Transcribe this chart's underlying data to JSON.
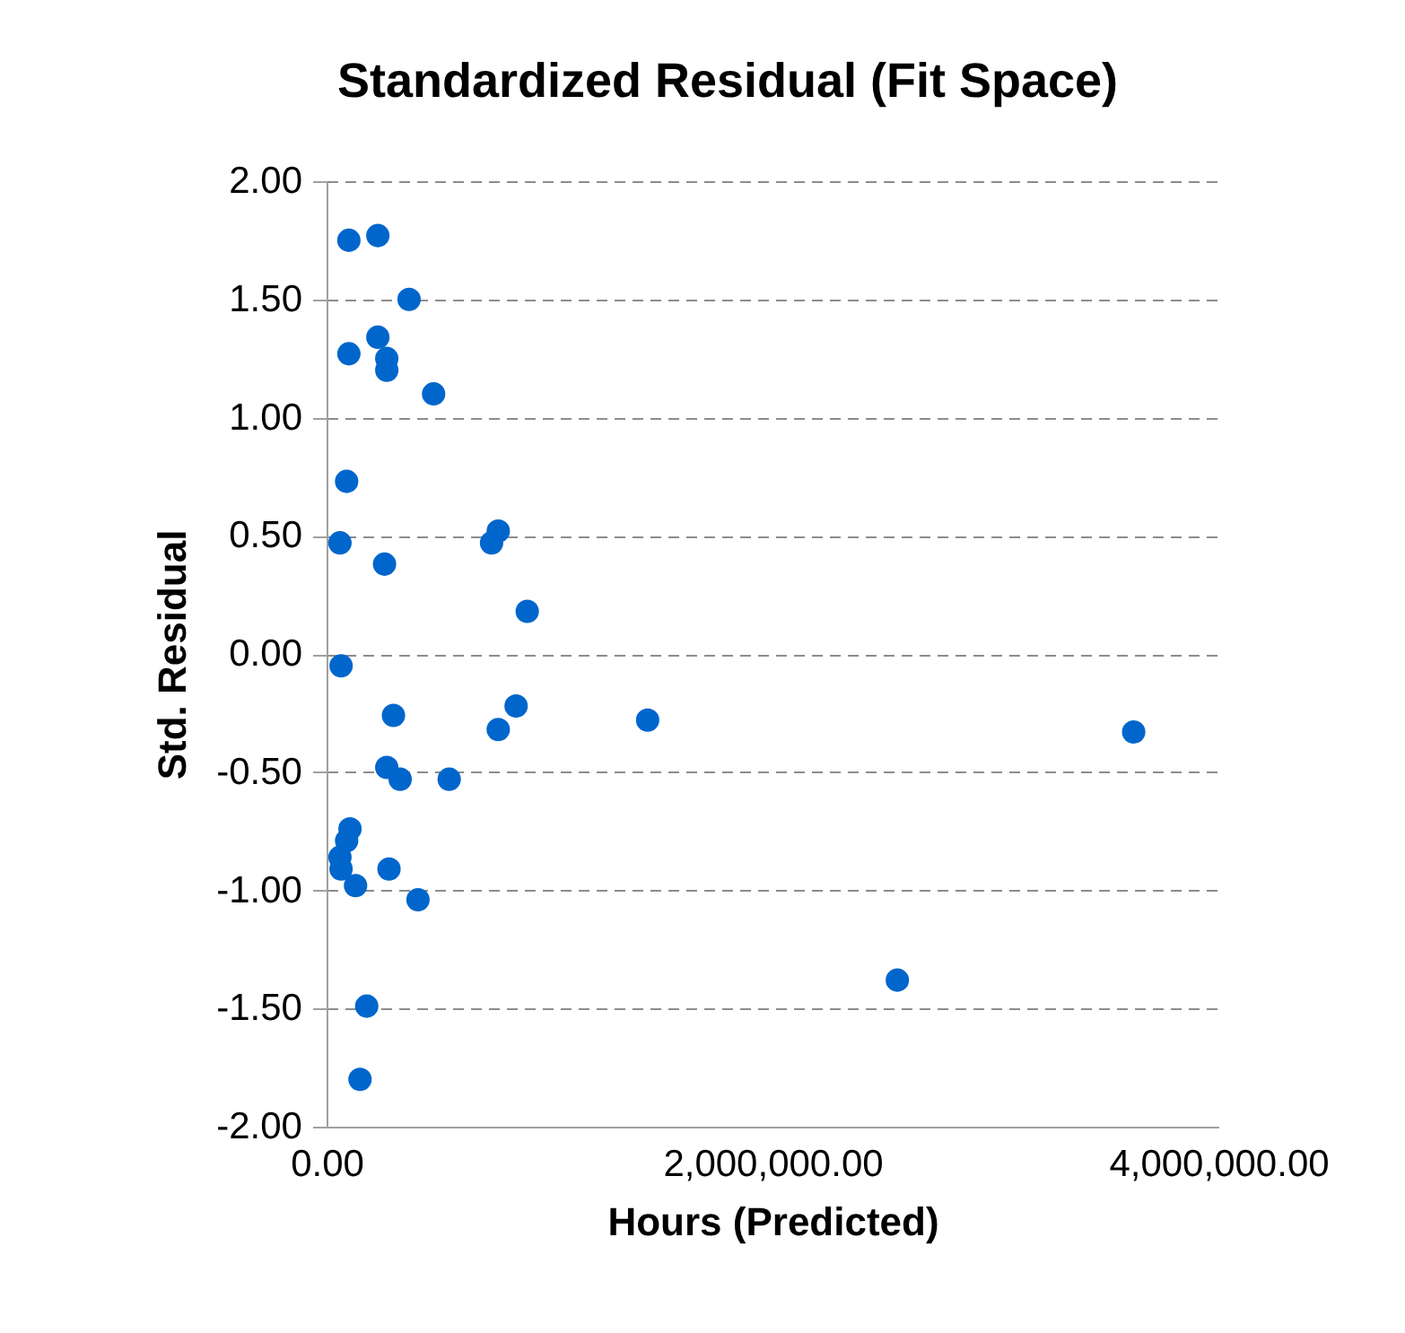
{
  "chart_data": {
    "type": "scatter",
    "title": "Standardized Residual (Fit Space)",
    "xlabel": "Hours (Predicted)",
    "ylabel": "Std. Residual",
    "x": [
      100000,
      230000,
      370000,
      100000,
      230000,
      270000,
      270000,
      480000,
      90000,
      60000,
      260000,
      740000,
      770000,
      900000,
      65000,
      300000,
      850000,
      770000,
      1440000,
      3620000,
      270000,
      330000,
      550000,
      105000,
      90000,
      60000,
      65000,
      130000,
      280000,
      410000,
      2560000,
      180000,
      150000
    ],
    "series": [
      {
        "color": "#0066cc",
        "values": [
          1.75,
          1.77,
          1.5,
          1.27,
          1.34,
          1.25,
          1.2,
          1.1,
          0.73,
          0.47,
          0.38,
          0.47,
          0.52,
          0.18,
          -0.05,
          -0.26,
          -0.22,
          -0.32,
          -0.28,
          -0.33,
          -0.48,
          -0.53,
          -0.53,
          -0.74,
          -0.79,
          -0.86,
          -0.91,
          -0.98,
          -0.91,
          -1.04,
          -1.38,
          -1.49,
          -1.8
        ]
      }
    ],
    "xlim": [
      0,
      4000000
    ],
    "xticks": [
      {
        "value": 0,
        "label": "0.00"
      },
      {
        "value": 2000000,
        "label": "2,000,000.00"
      },
      {
        "value": 4000000,
        "label": "4,000,000.00"
      }
    ],
    "ylim": [
      -2,
      2
    ],
    "yticks": [
      {
        "value": -2,
        "label": "-2.00"
      },
      {
        "value": -1.5,
        "label": "-1.50"
      },
      {
        "value": -1,
        "label": "-1.00"
      },
      {
        "value": -0.5,
        "label": "-0.50"
      },
      {
        "value": 0,
        "label": "0.00"
      },
      {
        "value": 0.5,
        "label": "0.50"
      },
      {
        "value": 1,
        "label": "1.00"
      },
      {
        "value": 1.5,
        "label": "1.50"
      },
      {
        "value": 2,
        "label": "2.00"
      }
    ],
    "grid": "y",
    "marker": "circle"
  }
}
